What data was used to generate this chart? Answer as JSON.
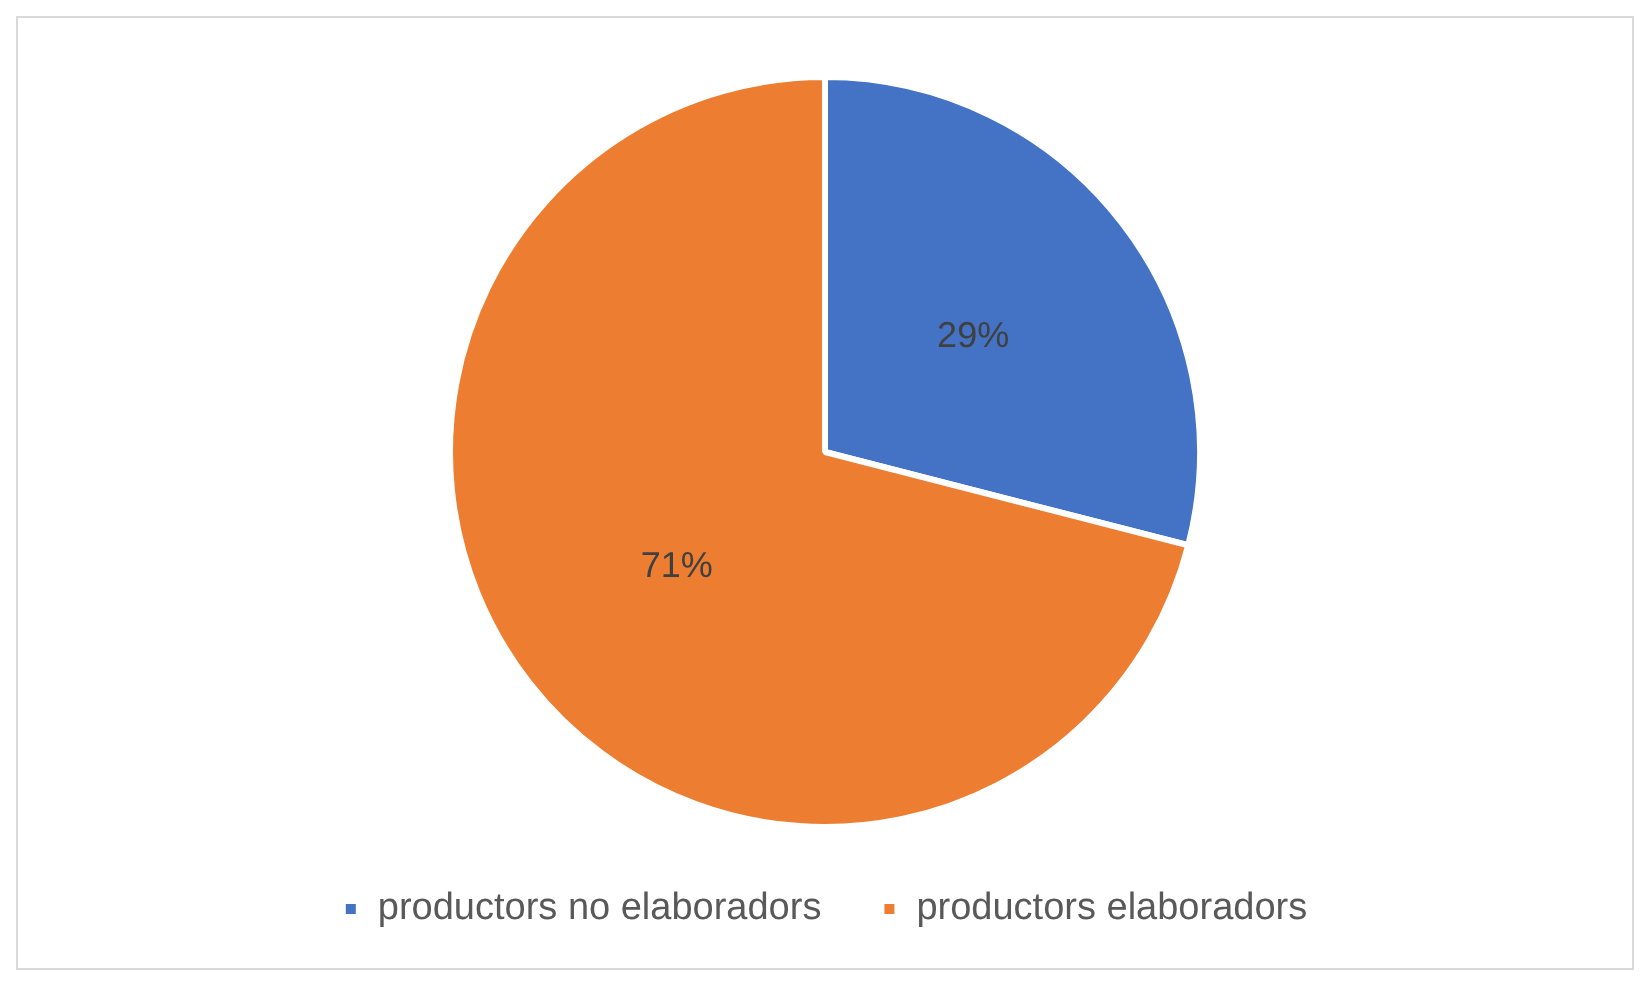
{
  "chart_data": {
    "type": "pie",
    "categories": [
      "productors no elaboradors",
      "productors elaboradors"
    ],
    "values": [
      29,
      71
    ],
    "colors": [
      "#4472c4",
      "#ed7d31"
    ],
    "value_labels": [
      "29%",
      "71%"
    ],
    "legend": "bottom"
  }
}
